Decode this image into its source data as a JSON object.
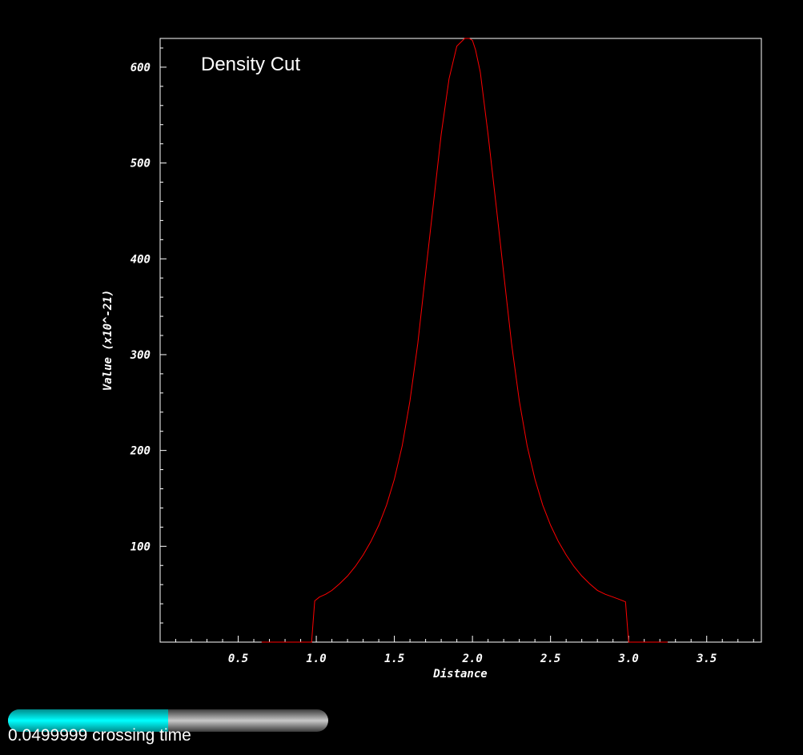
{
  "chart_data": {
    "type": "line",
    "title": "Density Cut",
    "xlabel": "Distance",
    "ylabel": "Value (x10^-21)",
    "xlim": [
      0.0,
      3.85
    ],
    "ylim": [
      0,
      630
    ],
    "xticks": [
      "0.5",
      "1.0",
      "1.5",
      "2.0",
      "2.5",
      "3.0",
      "3.5"
    ],
    "yticks": [
      "100",
      "200",
      "300",
      "400",
      "500",
      "600"
    ],
    "grid": false,
    "line_color": "#ff0000",
    "series": [
      {
        "x": [
          0.65,
          0.97,
          0.99,
          1.02,
          1.06,
          1.1,
          1.15,
          1.2,
          1.25,
          1.3,
          1.35,
          1.4,
          1.45,
          1.5,
          1.55,
          1.6,
          1.65,
          1.7,
          1.75,
          1.8,
          1.85,
          1.9,
          1.95,
          1.98,
          2.0,
          2.02,
          2.05,
          2.1,
          2.15,
          2.2,
          2.25,
          2.3,
          2.35,
          2.4,
          2.45,
          2.5,
          2.55,
          2.6,
          2.65,
          2.7,
          2.75,
          2.8,
          2.85,
          2.9,
          2.95,
          2.98,
          3.0,
          3.25
        ],
        "y": [
          0,
          0,
          43,
          47,
          50,
          54,
          61,
          69,
          79,
          91,
          105,
          122,
          143,
          170,
          205,
          252,
          312,
          385,
          458,
          530,
          588,
          622,
          630,
          630,
          628,
          618,
          595,
          530,
          458,
          385,
          312,
          252,
          205,
          170,
          143,
          122,
          105,
          91,
          79,
          69,
          61,
          54,
          50,
          47,
          44,
          42,
          0,
          0
        ]
      }
    ]
  },
  "progress": {
    "fraction": 0.5,
    "label": "0.0499999 crossing time",
    "fill_color": "#00ffff"
  }
}
